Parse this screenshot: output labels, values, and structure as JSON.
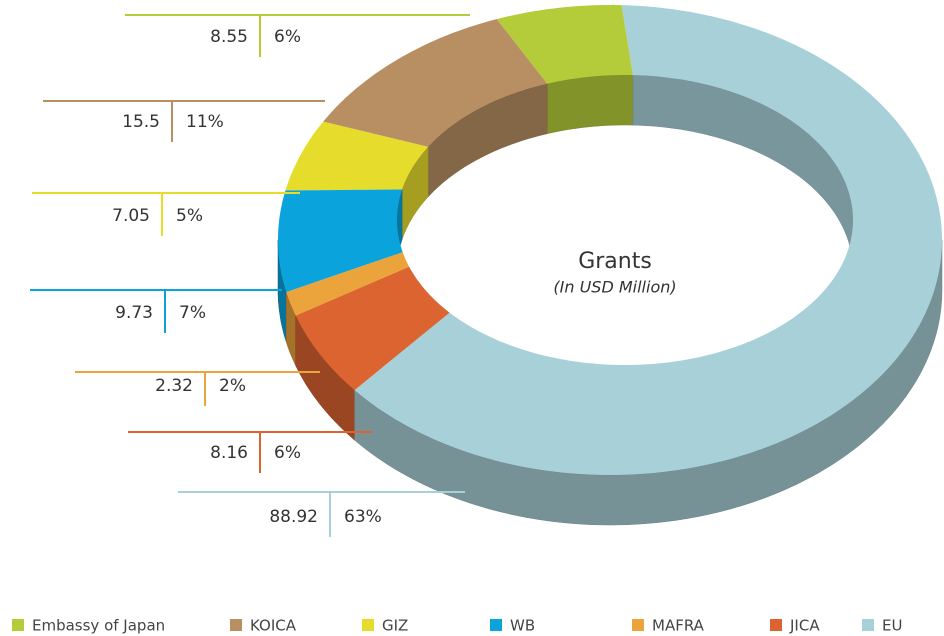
{
  "chart_data": {
    "type": "donut3d",
    "title": "Grants",
    "subtitle": "(In USD Million)",
    "categories": [
      "Embassy of Japan",
      "KOICA",
      "GIZ",
      "WB",
      "MAFRA",
      "JICA",
      "EU"
    ],
    "values": [
      8.55,
      15.5,
      7.05,
      9.73,
      2.32,
      8.16,
      88.92
    ],
    "percent_labels": [
      "6%",
      "11%",
      "5%",
      "7%",
      "2%",
      "6%",
      "63%"
    ],
    "colors": [
      "#b5cc3a",
      "#b88f63",
      "#e5dc2c",
      "#0aa3dc",
      "#eba33c",
      "#dc6430",
      "#a8d0d8"
    ],
    "legend": "bottom"
  }
}
